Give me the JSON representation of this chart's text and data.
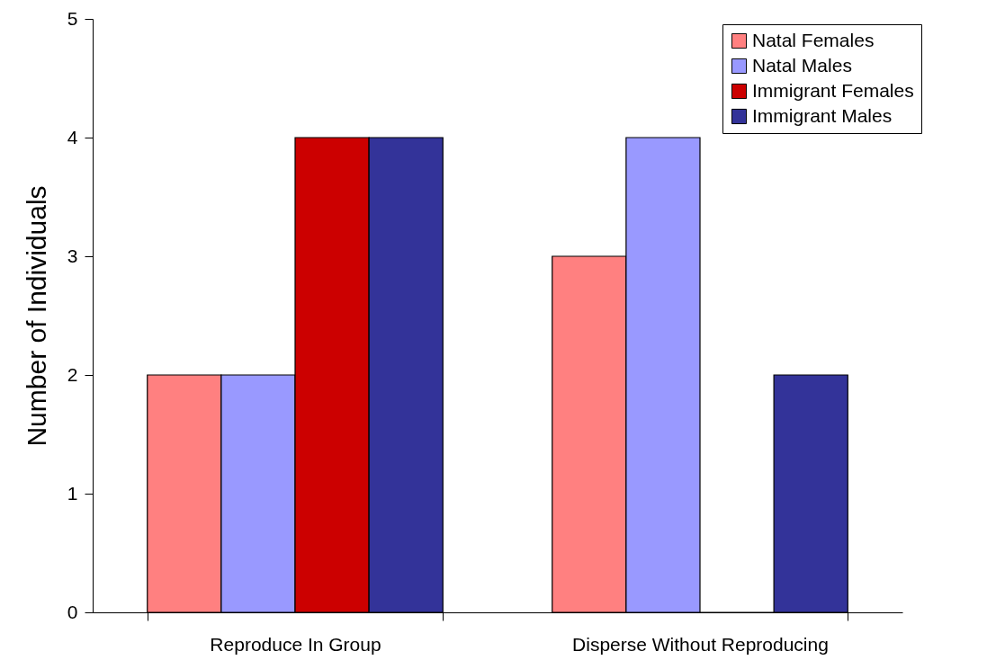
{
  "chart_data": {
    "type": "bar",
    "ylabel": "Number of Individuals",
    "categories": [
      "Reproduce In Group",
      "Disperse Without Reproducing"
    ],
    "series": [
      {
        "name": "Natal Females",
        "color": "#ff8080",
        "values": [
          2,
          3
        ]
      },
      {
        "name": "Natal Males",
        "color": "#9999ff",
        "values": [
          2,
          4
        ]
      },
      {
        "name": "Immigrant Females",
        "color": "#cc0000",
        "values": [
          4,
          0
        ]
      },
      {
        "name": "Immigrant Males",
        "color": "#333399",
        "values": [
          4,
          2
        ]
      }
    ],
    "ylim": [
      0,
      5
    ],
    "yticks": [
      0,
      1,
      2,
      3,
      4,
      5
    ],
    "legend": "top right"
  }
}
